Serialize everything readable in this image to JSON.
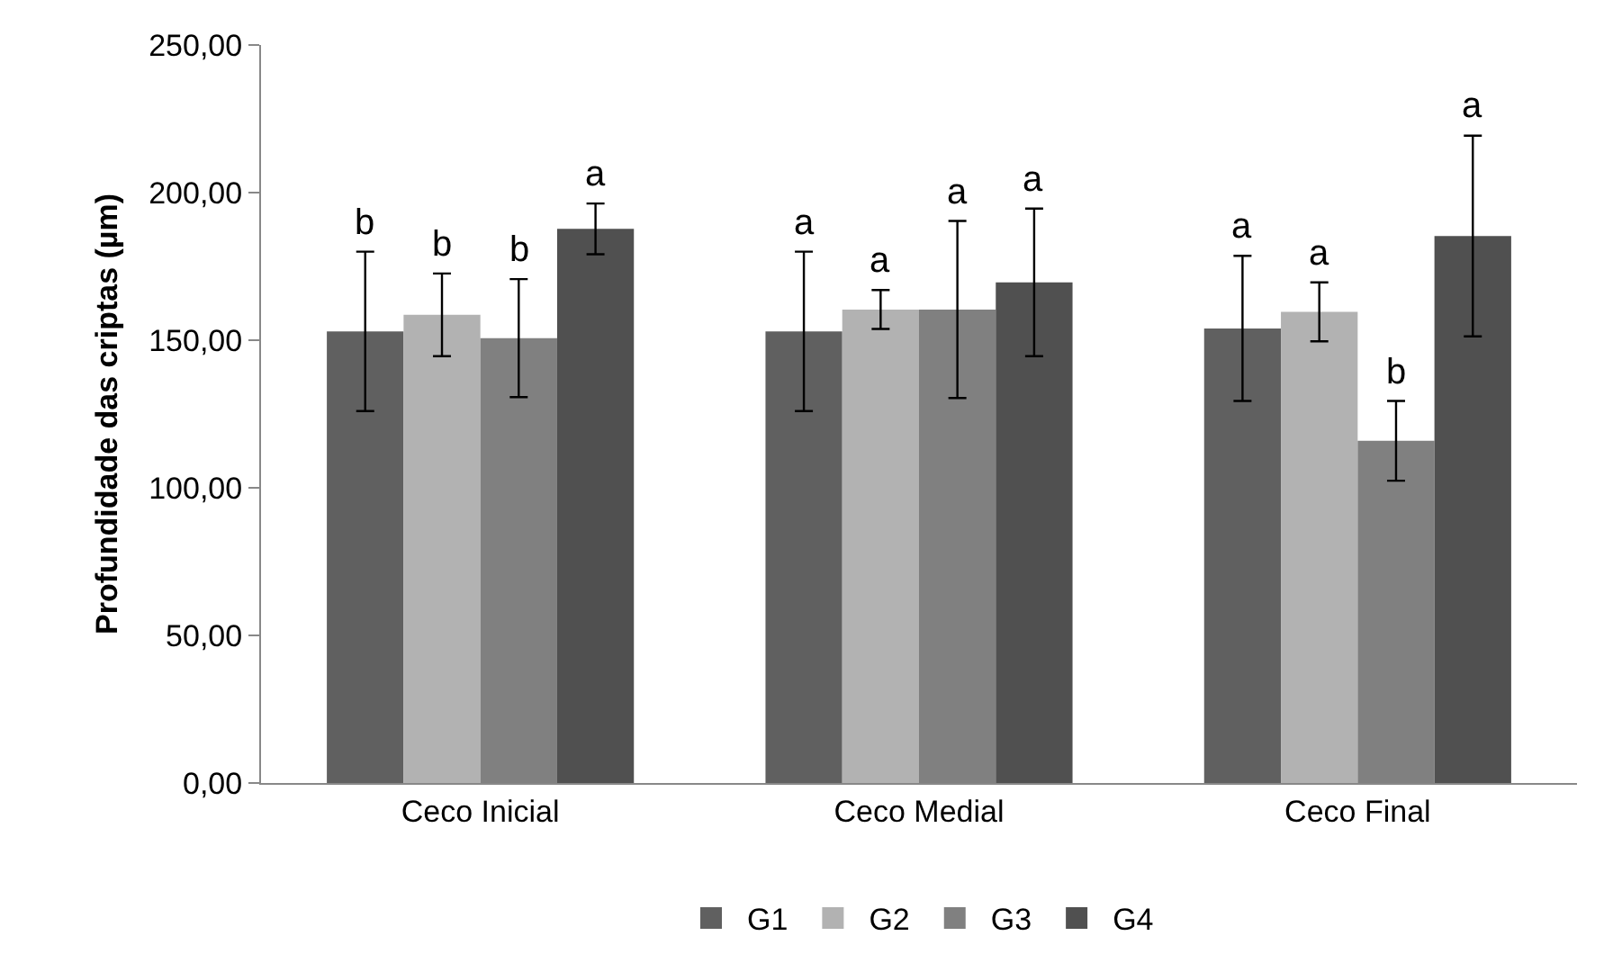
{
  "chart_data": {
    "type": "bar",
    "ylabel": "Profundidade das criptas (µm)",
    "categories": [
      "Ceco Inicial",
      "Ceco Medial",
      "Ceco Final"
    ],
    "series": [
      {
        "name": "G1",
        "color": "#606060",
        "values": [
          153,
          153,
          154
        ],
        "errors": [
          27,
          27,
          24.6
        ],
        "value_labels": [
          "b",
          "a",
          "a"
        ]
      },
      {
        "name": "G2",
        "color": "#b2b2b2",
        "values": [
          158.6,
          160.4,
          159.6
        ],
        "errors": [
          14,
          6.6,
          10
        ],
        "value_labels": [
          "b",
          "a",
          "a"
        ]
      },
      {
        "name": "G3",
        "color": "#808080",
        "values": [
          150.7,
          160.4,
          115.9
        ],
        "errors": [
          20,
          30,
          13.5
        ],
        "value_labels": [
          "b",
          "a",
          "b"
        ]
      },
      {
        "name": "G4",
        "color": "#505050",
        "values": [
          187.7,
          169.6,
          185.3
        ],
        "errors": [
          8.6,
          25,
          34
        ],
        "value_labels": [
          "a",
          "a",
          "a"
        ]
      }
    ],
    "ylim": [
      0,
      250
    ],
    "yticks": [
      {
        "value": 0,
        "label": "0,00"
      },
      {
        "value": 50,
        "label": "50,00"
      },
      {
        "value": 100,
        "label": "100,00"
      },
      {
        "value": 150,
        "label": "150,00"
      },
      {
        "value": 200,
        "label": "200,00"
      },
      {
        "value": 250,
        "label": "250,00"
      }
    ],
    "grid": false,
    "legend": "bottom"
  }
}
